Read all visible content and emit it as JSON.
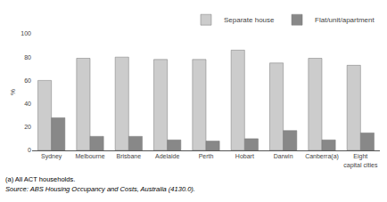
{
  "chart_data": {
    "type": "bar",
    "categories": [
      "Sydney",
      "Melbourne",
      "Brisbane",
      "Adelaide",
      "Perth",
      "Hobart",
      "Darwin",
      "Canberra(a)",
      "Eight\ncapital cities"
    ],
    "series": [
      {
        "name": "Separate house",
        "color": "#cccccc",
        "values": [
          60,
          79,
          80,
          78,
          78,
          86,
          75,
          79,
          73
        ]
      },
      {
        "name": "Flat/unit/apartment",
        "color": "#888888",
        "values": [
          28,
          12,
          12,
          9,
          8,
          10,
          17,
          9,
          15
        ]
      }
    ],
    "ylabel": "%",
    "ylim": [
      0,
      100
    ],
    "yticks": [
      0,
      20,
      40,
      60,
      80,
      100
    ],
    "grid": false,
    "legend": "upper right",
    "annotations": [
      "(a) All ACT households.",
      "Source: ABS Housing Occupancy and Costs, Australia (4130.0)."
    ]
  }
}
